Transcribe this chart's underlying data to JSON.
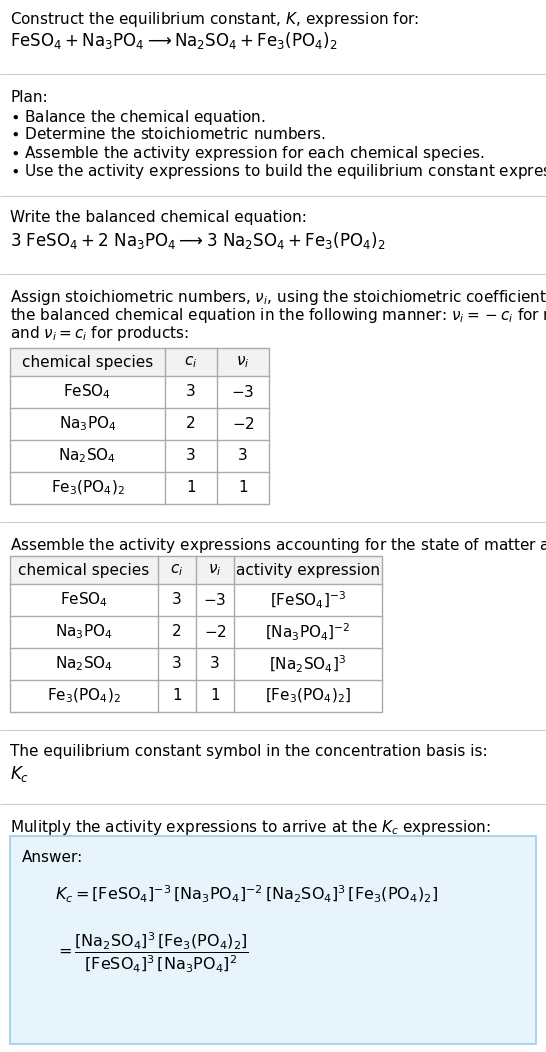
{
  "bg_color": "#ffffff",
  "answer_box_color": "#e8f4fc",
  "answer_box_border": "#99ccee",
  "separator_color": "#cccccc",
  "table_border_color": "#aaaaaa",
  "table_header_bg": "#f2f2f2",
  "text_color": "#000000",
  "sections": {
    "title1": "Construct the equilibrium constant, $K$, expression for:",
    "title2_plain": "FeSO",
    "plan_header": "Plan:",
    "plan_items": [
      "• Balance the chemical equation.",
      "• Determine the stoichiometric numbers.",
      "• Assemble the activity expression for each chemical species.",
      "• Use the activity expressions to build the equilibrium constant expression."
    ],
    "balanced_header": "Write the balanced chemical equation:",
    "stoich_header_lines": [
      "Assign stoichiometric numbers, $\\nu_i$, using the stoichiometric coefficients, $c_i$, from",
      "the balanced chemical equation in the following manner: $\\nu_i = -c_i$ for reactants",
      "and $\\nu_i = c_i$ for products:"
    ],
    "activity_header": "Assemble the activity expressions accounting for the state of matter and $\\nu_i$:",
    "kc_header": "The equilibrium constant symbol in the concentration basis is:",
    "kc_symbol": "$K_c$",
    "multiply_header": "Mulitply the activity expressions to arrive at the $K_c$ expression:",
    "answer_label": "Answer:"
  }
}
